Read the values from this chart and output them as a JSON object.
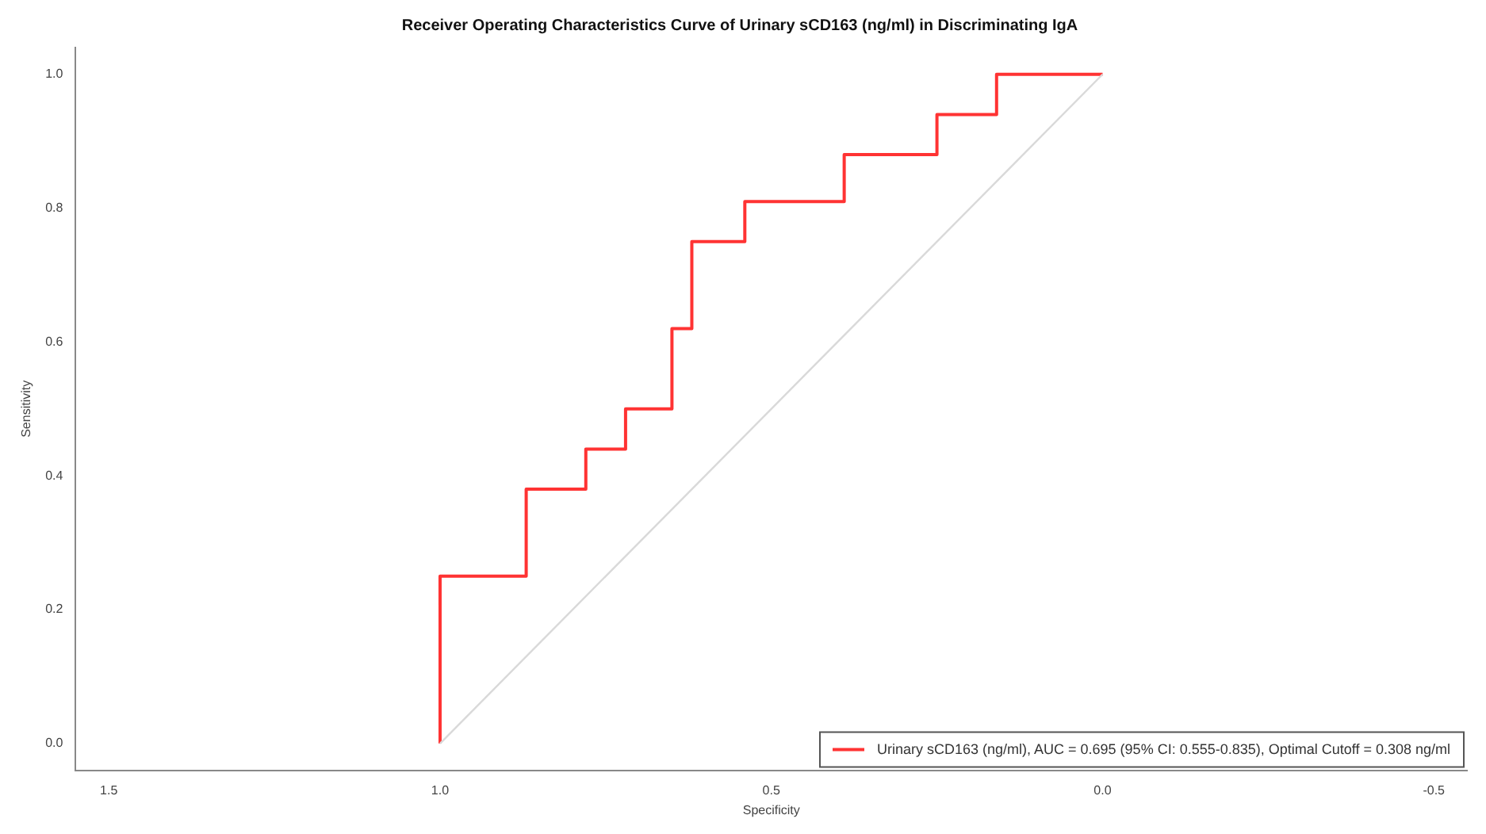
{
  "chart_data": {
    "type": "step",
    "title": "Receiver Operating Characteristics Curve of Urinary sCD163 (ng/ml) in Discriminating IgA",
    "xlabel": "Specificity",
    "ylabel": "Sensitivity",
    "xlim": [
      1.55,
      -0.55
    ],
    "xticks": [
      {
        "value": 1.5,
        "label": "1.5"
      },
      {
        "value": 1,
        "label": "1.0"
      },
      {
        "value": 0.5,
        "label": "0.5"
      },
      {
        "value": 0,
        "label": "0.0"
      },
      {
        "value": -0.5,
        "label": "-0.5"
      }
    ],
    "ylim": [
      -0.04,
      1.04
    ],
    "yticks": [
      {
        "value": 0,
        "label": "0.0"
      },
      {
        "value": 0.2,
        "label": "0.2"
      },
      {
        "value": 0.4,
        "label": "0.4"
      },
      {
        "value": 0.6,
        "label": "0.6"
      },
      {
        "value": 0.8,
        "label": "0.8"
      },
      {
        "value": 1,
        "label": "1.0"
      }
    ],
    "series": [
      {
        "type": "line",
        "color": "#d9d9d9",
        "x": [
          1,
          0
        ],
        "values": [
          0,
          1
        ]
      },
      {
        "name": "Urinary sCD163 (ng/ml), AUC = 0.695 (95% CI: 0.555-0.835), Optimal Cutoff = 0.308 ng/ml",
        "color": "#ff3333",
        "x": [
          1,
          0.87,
          0.78,
          0.72,
          0.65,
          0.62,
          0.54,
          0.39,
          0.25,
          0.16,
          0
        ],
        "values": [
          0,
          0.25,
          0.38,
          0.44,
          0.5,
          0.62,
          0.75,
          0.81,
          0.88,
          0.94,
          1
        ]
      }
    ],
    "grid": false,
    "legend": "bottom right",
    "marker": "none",
    "line_style": "solid"
  }
}
